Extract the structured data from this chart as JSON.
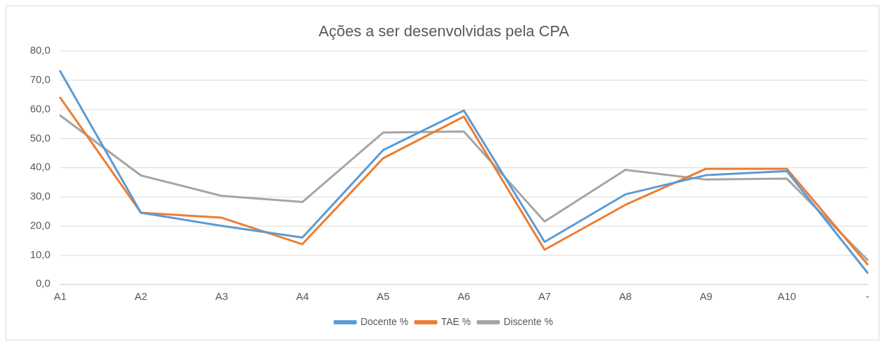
{
  "chart_data": {
    "type": "line",
    "title": "Ações a ser desenvolvidas pela CPA",
    "categories": [
      "A1",
      "A2",
      "A3",
      "A4",
      "A5",
      "A6",
      "A7",
      "A8",
      "A9",
      "A10",
      "-"
    ],
    "series": [
      {
        "name": "Docente %",
        "color": "#5b9bd5",
        "values": [
          73.1,
          24.5,
          20.0,
          16.0,
          46.0,
          59.6,
          14.5,
          30.8,
          37.4,
          38.8,
          3.9
        ]
      },
      {
        "name": "TAE %",
        "color": "#ed7d31",
        "values": [
          64.0,
          24.5,
          22.8,
          13.7,
          43.2,
          57.5,
          11.8,
          27.2,
          39.6,
          39.6,
          6.8
        ]
      },
      {
        "name": "Discente %",
        "color": "#a5a5a5",
        "values": [
          57.9,
          37.3,
          30.3,
          28.2,
          52.0,
          52.4,
          21.5,
          39.2,
          35.9,
          36.2,
          8.3
        ]
      }
    ],
    "ylim": [
      0,
      80
    ],
    "yticks": [
      {
        "value": 0,
        "label": "0,0"
      },
      {
        "value": 10,
        "label": "10,0"
      },
      {
        "value": 20,
        "label": "20,0"
      },
      {
        "value": 30,
        "label": "30,0"
      },
      {
        "value": 40,
        "label": "40,0"
      },
      {
        "value": 50,
        "label": "50,0"
      },
      {
        "value": 60,
        "label": "60,0"
      },
      {
        "value": 70,
        "label": "70,0"
      },
      {
        "value": 80,
        "label": "80,0"
      }
    ],
    "grid": "y",
    "legend": "bottom",
    "marker": "none",
    "line_style": "solid"
  }
}
